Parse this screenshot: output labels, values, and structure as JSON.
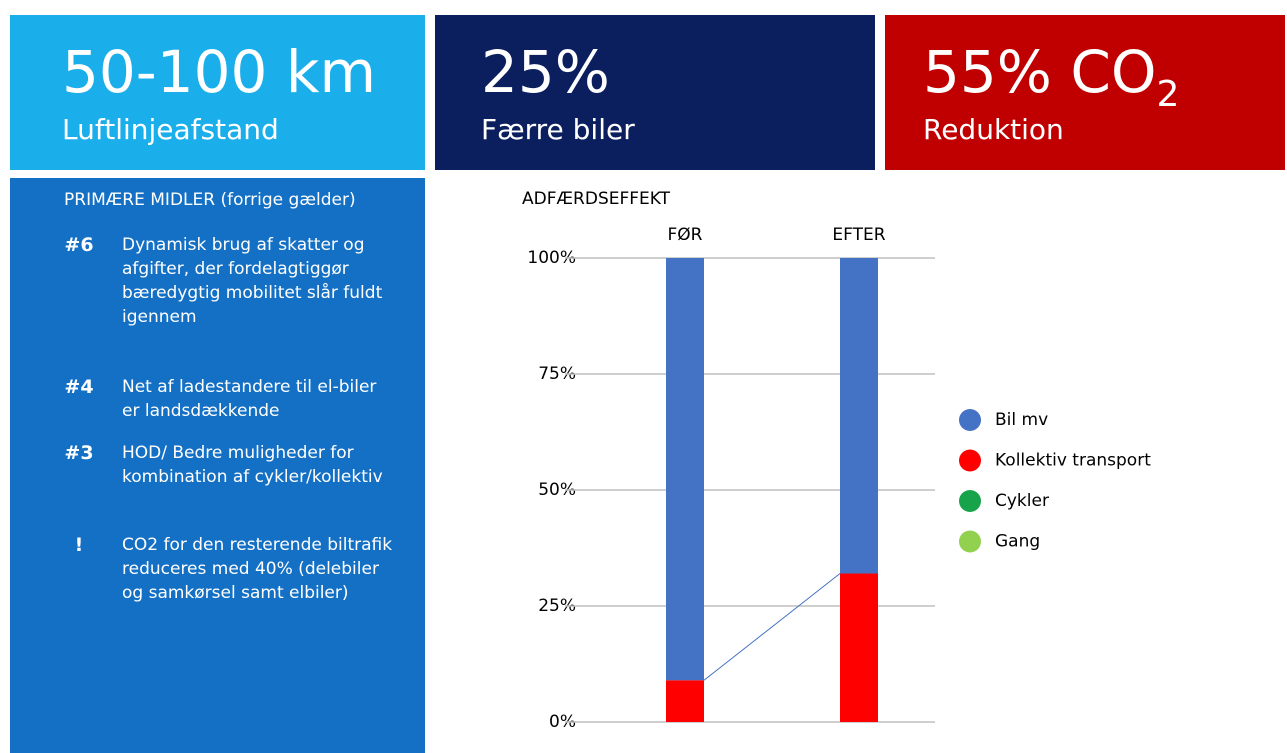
{
  "header": {
    "boxes": [
      {
        "title": "50-100 km",
        "subtitle": "Luftlinjeafstand"
      },
      {
        "title": "25%",
        "subtitle": "Færre biler"
      },
      {
        "title": "55% CO",
        "subscript": "2",
        "subtitle": "Reduktion"
      }
    ]
  },
  "panel": {
    "heading": "PRIMÆRE MIDLER (forrige gælder)",
    "items": [
      {
        "label": "#6",
        "text": "Dynamisk brug af skatter og afgifter, der fordelagtiggør bæredygtig mobilitet slår fuldt igennem"
      },
      {
        "label": "#4",
        "text": "Net af ladestandere til el-biler er landsdækkende"
      },
      {
        "label": "#3",
        "text": "HOD/ Bedre muligheder for kombination af cykler/kollektiv"
      },
      {
        "label": "!",
        "text": "CO2 for den resterende biltrafik reduceres med 40% (delebiler og samkørsel samt elbiler)"
      }
    ]
  },
  "chart_data": {
    "type": "stacked_bar",
    "title": "ADFÆRDSEFFEKT",
    "categories": [
      "FØR",
      "EFTER"
    ],
    "series": [
      {
        "name": "Bil mv",
        "color": "#4472c4",
        "values": [
          91,
          68
        ]
      },
      {
        "name": "Kollektiv transport",
        "color": "#ff0000",
        "values": [
          9,
          32
        ]
      },
      {
        "name": "Cykler",
        "color": "#17a34a",
        "values": [
          0,
          0
        ]
      },
      {
        "name": "Gang",
        "color": "#92d050",
        "values": [
          0,
          0
        ]
      }
    ],
    "ylim": [
      0,
      100
    ],
    "yticks": [
      {
        "value": 0,
        "label": "0%"
      },
      {
        "value": 25,
        "label": "25%"
      },
      {
        "value": 50,
        "label": "50%"
      },
      {
        "value": 75,
        "label": "75%"
      },
      {
        "value": 100,
        "label": "100%"
      }
    ],
    "grid": true,
    "legend": "right"
  }
}
